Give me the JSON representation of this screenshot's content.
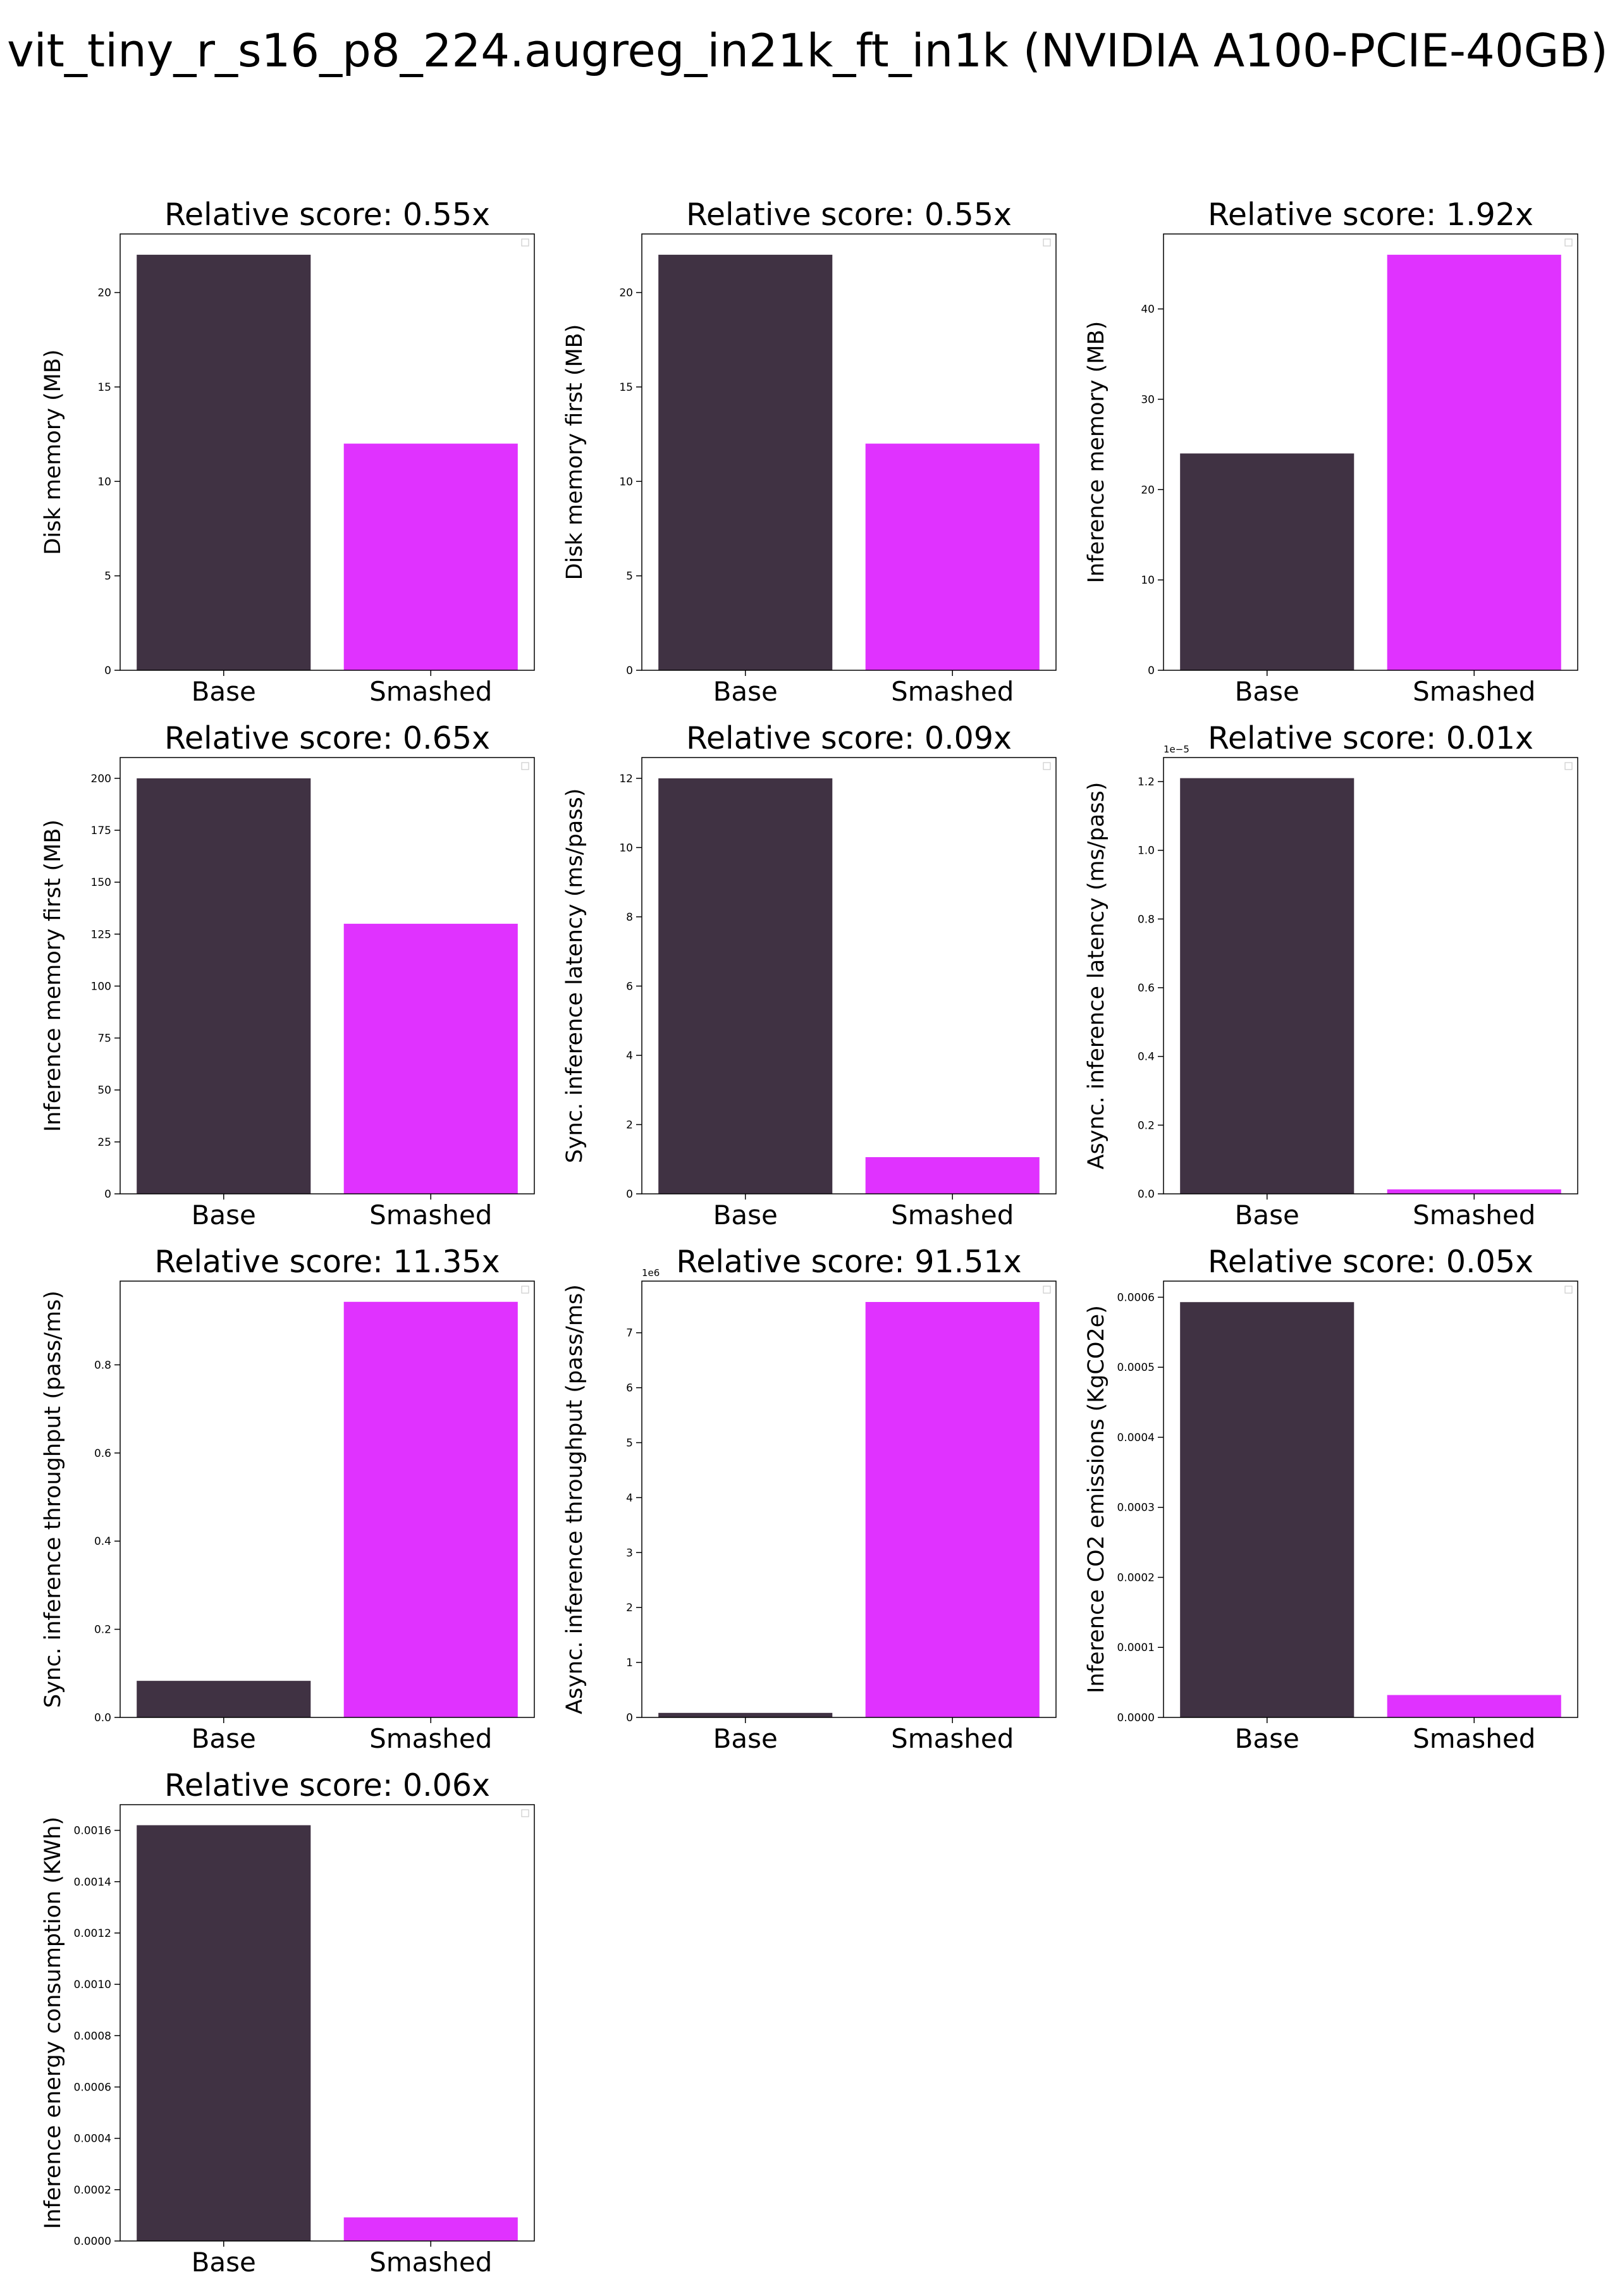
{
  "figure_title": "vit_tiny_r_s16_p8_224.augreg_in21k_ft_in1k (NVIDIA A100-PCIE-40GB)",
  "colors": {
    "base": "#403243",
    "smashed": "#e032ff",
    "axis": "#000000"
  },
  "chart_data": [
    {
      "type": "bar",
      "title": "Relative score: 0.55x",
      "ylabel": "Disk memory (MB)",
      "categories": [
        "Base",
        "Smashed"
      ],
      "values": [
        22.0,
        12.0
      ],
      "ylim": [
        0,
        23.1
      ],
      "yticks": [
        0,
        5,
        10,
        15,
        20
      ],
      "yticklabels": [
        "0",
        "5",
        "10",
        "15",
        "20"
      ],
      "offset": "",
      "grid": false
    },
    {
      "type": "bar",
      "title": "Relative score: 0.55x",
      "ylabel": "Disk memory first (MB)",
      "categories": [
        "Base",
        "Smashed"
      ],
      "values": [
        22.0,
        12.0
      ],
      "ylim": [
        0,
        23.1
      ],
      "yticks": [
        0,
        5,
        10,
        15,
        20
      ],
      "yticklabels": [
        "0",
        "5",
        "10",
        "15",
        "20"
      ],
      "offset": "",
      "grid": false
    },
    {
      "type": "bar",
      "title": "Relative score: 1.92x",
      "ylabel": "Inference memory (MB)",
      "categories": [
        "Base",
        "Smashed"
      ],
      "values": [
        24.0,
        46.0
      ],
      "ylim": [
        0,
        48.3
      ],
      "yticks": [
        0,
        10,
        20,
        30,
        40
      ],
      "yticklabels": [
        "0",
        "10",
        "20",
        "30",
        "40"
      ],
      "offset": "",
      "grid": false
    },
    {
      "type": "bar",
      "title": "Relative score: 0.65x",
      "ylabel": "Inference memory first (MB)",
      "categories": [
        "Base",
        "Smashed"
      ],
      "values": [
        200.0,
        130.0
      ],
      "ylim": [
        0,
        210
      ],
      "yticks": [
        0,
        25,
        50,
        75,
        100,
        125,
        150,
        175,
        200
      ],
      "yticklabels": [
        "0",
        "25",
        "50",
        "75",
        "100",
        "125",
        "150",
        "175",
        "200"
      ],
      "offset": "",
      "grid": false
    },
    {
      "type": "bar",
      "title": "Relative score: 0.09x",
      "ylabel": "Sync. inference latency (ms/pass)",
      "categories": [
        "Base",
        "Smashed"
      ],
      "values": [
        12.0,
        1.06
      ],
      "ylim": [
        0,
        12.6
      ],
      "yticks": [
        0,
        2,
        4,
        6,
        8,
        10,
        12
      ],
      "yticklabels": [
        "0",
        "2",
        "4",
        "6",
        "8",
        "10",
        "12"
      ],
      "offset": "",
      "grid": false
    },
    {
      "type": "bar",
      "title": "Relative score: 0.01x",
      "ylabel": "Async. inference latency (ms/pass)",
      "categories": [
        "Base",
        "Smashed"
      ],
      "values": [
        1.21e-05,
        1.3e-07
      ],
      "ylim": [
        0,
        1.27e-05
      ],
      "yticks": [
        0,
        2e-06,
        4e-06,
        6e-06,
        8e-06,
        1e-05,
        1.2e-05
      ],
      "yticklabels": [
        "0.0",
        "0.2",
        "0.4",
        "0.6",
        "0.8",
        "1.0",
        "1.2"
      ],
      "offset": "1e−5",
      "grid": false
    },
    {
      "type": "bar",
      "title": "Relative score: 11.35x",
      "ylabel": "Sync. inference throughput (pass/ms)",
      "categories": [
        "Base",
        "Smashed"
      ],
      "values": [
        0.083,
        0.943
      ],
      "ylim": [
        0,
        0.99
      ],
      "yticks": [
        0,
        0.2,
        0.4,
        0.6,
        0.8
      ],
      "yticklabels": [
        "0.0",
        "0.2",
        "0.4",
        "0.6",
        "0.8"
      ],
      "offset": "",
      "grid": false
    },
    {
      "type": "bar",
      "title": "Relative score: 91.51x",
      "ylabel": "Async. inference throughput (pass/ms)",
      "categories": [
        "Base",
        "Smashed"
      ],
      "values": [
        82600,
        7560000
      ],
      "ylim": [
        0,
        7940000
      ],
      "yticks": [
        0,
        1000000,
        2000000,
        3000000,
        4000000,
        5000000,
        6000000,
        7000000
      ],
      "yticklabels": [
        "0",
        "1",
        "2",
        "3",
        "4",
        "5",
        "6",
        "7"
      ],
      "offset": "1e6",
      "grid": false
    },
    {
      "type": "bar",
      "title": "Relative score: 0.05x",
      "ylabel": "Inference CO2 emissions (KgCO2e)",
      "categories": [
        "Base",
        "Smashed"
      ],
      "values": [
        0.000593,
        3.2e-05
      ],
      "ylim": [
        0,
        0.000623
      ],
      "yticks": [
        0,
        0.0001,
        0.0002,
        0.0003,
        0.0004,
        0.0005,
        0.0006
      ],
      "yticklabels": [
        "0.0000",
        "0.0001",
        "0.0002",
        "0.0003",
        "0.0004",
        "0.0005",
        "0.0006"
      ],
      "offset": "",
      "grid": false
    },
    {
      "type": "bar",
      "title": "Relative score: 0.06x",
      "ylabel": "Inference energy consumption (KWh)",
      "categories": [
        "Base",
        "Smashed"
      ],
      "values": [
        0.00162,
        9.2e-05
      ],
      "ylim": [
        0,
        0.0017
      ],
      "yticks": [
        0,
        0.0002,
        0.0004,
        0.0006,
        0.0008,
        0.001,
        0.0012,
        0.0014,
        0.0016
      ],
      "yticklabels": [
        "0.0000",
        "0.0002",
        "0.0004",
        "0.0006",
        "0.0008",
        "0.0010",
        "0.0012",
        "0.0014",
        "0.0016"
      ],
      "offset": "",
      "grid": false
    }
  ]
}
